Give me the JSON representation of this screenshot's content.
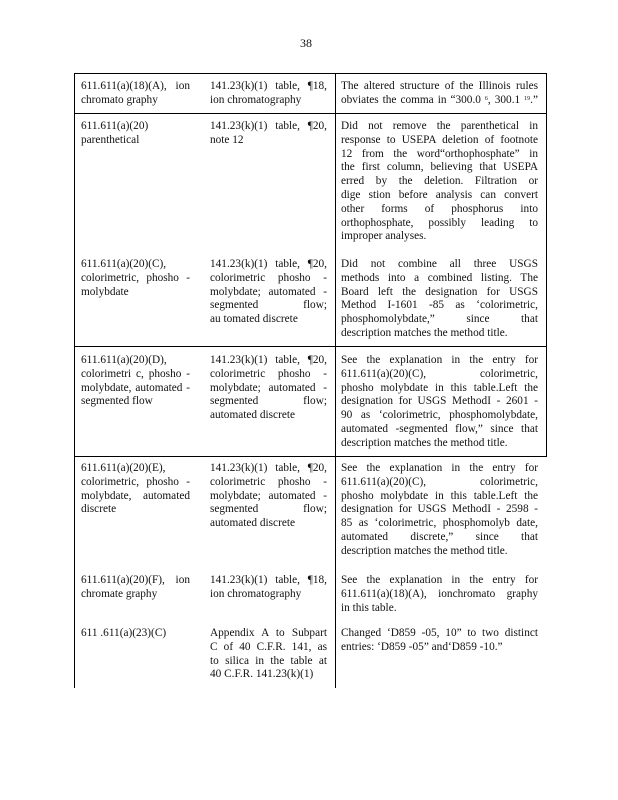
{
  "page_number": "38",
  "rows": [
    {
      "c1": [
        "611.611(a)(18)(A),      ion",
        "chromato   graphy"
      ],
      "c2": [
        "141.23(k)(1)    table,  ¶18,",
        "ion  chromatography"
      ],
      "c3_line1": "The  altered   structure   of  the  Illinois  rules",
      "c3_line2": {
        "a": "obviates   the  comma   in  “300.0 ",
        "sup1": "6",
        "b": ", 300.1 ",
        "sup2": "19",
        "c": ".”"
      }
    },
    {
      "c1": [
        "611.611(a)(20)",
        "parenthetical"
      ],
      "c2": [
        "141.23(k)(1)    table,  ¶20,",
        "note  12"
      ],
      "c3": [
        "Did  not  remove    the  parenthetical     in",
        "response    to USEPA    deletion   of footnote",
        "12  from   the  word“orthophosphate”       in",
        "the  first  column,   believing   that  USEPA",
        "erred   by  the  deletion.    Filtration    or",
        "dige stion  before   analysis   can  convert",
        "other  forms   of  phosphorus    into",
        "orthophosphate,      possibly   leading   to",
        "improper    analyses."
      ]
    },
    {
      "c1": [
        "611.611(a)(20)(C),",
        "colorimetric,     phosho  -",
        "molybdate"
      ],
      "c2": [
        "141.23(k)(1)    table,  ¶20,",
        "colorimetric     phosho  -",
        "molybdate;     automated   -",
        "segmented     flow;",
        "au tomated    discrete"
      ],
      "c3": [
        "Did  not  combine    all  three   USGS",
        "methods    into a combined    listing.   The",
        "Board   left  the  designation    for  USGS",
        "Method    I-1601  -85  as  ‘colorimetric,",
        "phosphomolybdate,”       since   that",
        "description    matches    the  method    title."
      ]
    },
    {
      "c1": [
        "611.611(a)(20)(D),",
        "colorimetri    c,  phosho  -",
        "molybdate,     automated   -",
        "segmented     flow"
      ],
      "c2": [
        "141.23(k)(1)    table,  ¶20,",
        "colorimetric     phosho  -",
        "molybdate;     automated   -",
        "segmented     flow;",
        "automated     discrete"
      ],
      "c3": [
        "See  the  explanation    in  the  entry  for",
        "611.611(a)(20)(C),       colorimetric,",
        "phosho  molybdate    in  this  table.Left   the",
        "designation    for  USGS   MethodI   - 2601  -",
        "90  as  ‘colorimetric,     phosphomolybdate,",
        "automated    -segmented    flow,”  since  that",
        "description    matches    the  method    title."
      ]
    },
    {
      "c1": [
        "611.611(a)(20)(E),",
        "colorimetric,     phosho  -",
        "molybdate,     automated",
        "discrete"
      ],
      "c2": [
        "141.23(k)(1)    table,  ¶20,",
        "colorimetric     phosho  -",
        "molybdate;     automated   -",
        "segmented     flow;",
        "automated     discrete"
      ],
      "c3": [
        "See  the  explanation    in  the  entry  for",
        "611.611(a)(20)(C),       colorimetric,",
        "phosho  molybdate    in  this  table.Left    the",
        "designation    for  USGS   MethodI   - 2598  -",
        "85  as  ‘colorimetric,     phosphomolyb    date,",
        "automated    discrete,”    since   that",
        "description    matches    the  method    title."
      ]
    },
    {
      "c1": [
        "611.611(a)(20)(F),       ion",
        "chromate    graphy"
      ],
      "c2": [
        "141.23(k)(1)    table,  ¶18,",
        "ion  chromatography"
      ],
      "c3": [
        "See  the  explanation    in  the  entry  for",
        "611.611(a)(18)(A),       ionchromato   graphy",
        "in  this  table."
      ]
    },
    {
      "c1": [
        "611 .611(a)(23)(C)"
      ],
      "c2": [
        "Appendix    A  to Subpart",
        "C  of  40  C.F.R.    141,  as",
        "to  silica  in  the  table  at",
        "40  C.F.R.    141.23(k)(1)"
      ],
      "c3": [
        "Changed    ‘D859  -05,  10” to two  distinct",
        "entries:   ‘D859  -05”  and‘D859   -10.”"
      ]
    }
  ]
}
